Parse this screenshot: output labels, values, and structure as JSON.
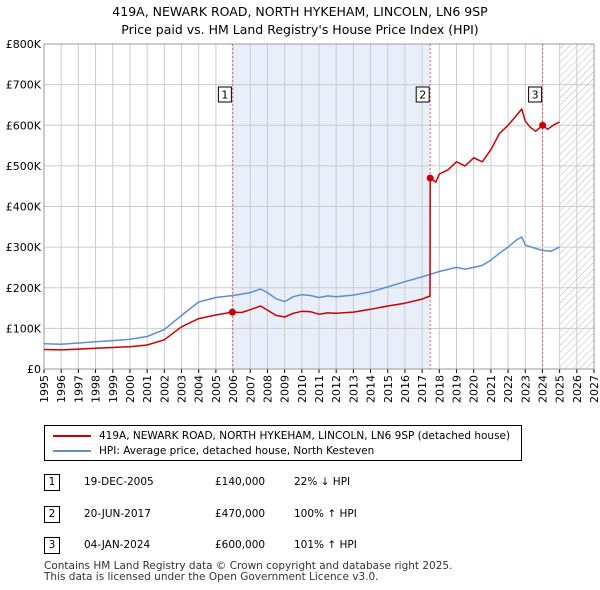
{
  "title_line1": "419A, NEWARK ROAD, NORTH HYKEHAM, LINCOLN, LN6 9SP",
  "title_line2": "Price paid vs. HM Land Registry's House Price Index (HPI)",
  "colors": {
    "property": "#cc0000",
    "hpi": "#5b8fd0",
    "shade": "#e8eefa",
    "grid": "#cccccc",
    "marker_line": "#dd6666"
  },
  "chart_data": {
    "type": "line",
    "xlim": [
      1995,
      2027
    ],
    "ylim": [
      0,
      800000
    ],
    "yticks": [
      0,
      100000,
      200000,
      300000,
      400000,
      500000,
      600000,
      700000,
      800000
    ],
    "ytick_labels": [
      "£0",
      "£100K",
      "£200K",
      "£300K",
      "£400K",
      "£500K",
      "£600K",
      "£700K",
      "£800K"
    ],
    "xticks": [
      1995,
      1996,
      1997,
      1998,
      1999,
      2000,
      2001,
      2002,
      2003,
      2004,
      2005,
      2006,
      2007,
      2008,
      2009,
      2010,
      2011,
      2012,
      2013,
      2014,
      2015,
      2016,
      2017,
      2018,
      2019,
      2020,
      2021,
      2022,
      2023,
      2024,
      2025,
      2026,
      2027
    ],
    "xtick_labels": [
      "1995",
      "1996",
      "1997",
      "1998",
      "1999",
      "2000",
      "2001",
      "2002",
      "2003",
      "2004",
      "2005",
      "2006",
      "2007",
      "2008",
      "2009",
      "2010",
      "2011",
      "2012",
      "2013",
      "2014",
      "2015",
      "2016",
      "2017",
      "2018",
      "2019",
      "2020",
      "2021",
      "2022",
      "2023",
      "2024",
      "2025",
      "2026",
      "2027"
    ],
    "shaded_period": [
      2005.96,
      2017.47
    ],
    "forecast_start": 2025.0,
    "series": [
      {
        "name": "419A, NEWARK ROAD, NORTH HYKEHAM, LINCOLN, LN6 9SP (detached house)",
        "x": [
          1995,
          1996,
          1997,
          1998,
          1999,
          2000,
          2001,
          2002,
          2003,
          2004,
          2005,
          2005.96,
          2006.5,
          2007,
          2007.6,
          2008,
          2008.5,
          2009,
          2009.5,
          2010,
          2010.5,
          2011,
          2011.5,
          2012,
          2013,
          2014,
          2015,
          2016,
          2017,
          2017.46,
          2017.47,
          2017.8,
          2018,
          2018.5,
          2019,
          2019.5,
          2020,
          2020.5,
          2021,
          2021.5,
          2022,
          2022.5,
          2022.8,
          2023,
          2023.3,
          2023.6,
          2024.01,
          2024.3,
          2024.7,
          2025
        ],
        "values": [
          48000,
          47000,
          49000,
          51000,
          53000,
          55000,
          59000,
          72000,
          104000,
          124000,
          133000,
          140000,
          139000,
          146000,
          155000,
          145000,
          132000,
          128000,
          137000,
          142000,
          141000,
          135000,
          138000,
          137000,
          140000,
          147000,
          155000,
          162000,
          172000,
          180000,
          470000,
          460000,
          480000,
          490000,
          510000,
          500000,
          520000,
          510000,
          540000,
          580000,
          600000,
          625000,
          640000,
          610000,
          595000,
          585000,
          600000,
          590000,
          602000,
          608000
        ]
      },
      {
        "name": "HPI: Average price, detached house, North Kesteven",
        "x": [
          1995,
          1996,
          1997,
          1998,
          1999,
          2000,
          2001,
          2002,
          2003,
          2004,
          2005,
          2006,
          2007,
          2007.6,
          2008,
          2008.5,
          2009,
          2009.5,
          2010,
          2010.5,
          2011,
          2011.5,
          2012,
          2013,
          2014,
          2015,
          2016,
          2017,
          2018,
          2019,
          2019.5,
          2020,
          2020.5,
          2021,
          2021.5,
          2022,
          2022.5,
          2022.8,
          2023,
          2023.5,
          2024,
          2024.5,
          2025
        ],
        "values": [
          62000,
          61000,
          64000,
          67000,
          70000,
          73000,
          80000,
          97000,
          132000,
          165000,
          176000,
          181000,
          188000,
          197000,
          188000,
          173000,
          166000,
          178000,
          183000,
          181000,
          176000,
          180000,
          178000,
          182000,
          190000,
          202000,
          215000,
          227000,
          240000,
          250000,
          246000,
          250000,
          255000,
          268000,
          285000,
          300000,
          318000,
          325000,
          305000,
          298000,
          292000,
          290000,
          300000
        ]
      }
    ],
    "sale_markers": [
      {
        "label": "1",
        "x": 2005.96,
        "value": 140000
      },
      {
        "label": "2",
        "x": 2017.47,
        "value": 470000
      },
      {
        "label": "3",
        "x": 2024.01,
        "value": 600000
      }
    ]
  },
  "legend": {
    "property": "419A, NEWARK ROAD, NORTH HYKEHAM, LINCOLN, LN6 9SP (detached house)",
    "hpi": "HPI: Average price, detached house, North Kesteven"
  },
  "sales": [
    {
      "num": "1",
      "date": "19-DEC-2005",
      "price": "£140,000",
      "hpi": "22% ↓ HPI"
    },
    {
      "num": "2",
      "date": "20-JUN-2017",
      "price": "£470,000",
      "hpi": "100% ↑ HPI"
    },
    {
      "num": "3",
      "date": "04-JAN-2024",
      "price": "£600,000",
      "hpi": "101% ↑ HPI"
    }
  ],
  "footer": {
    "line1": "Contains HM Land Registry data © Crown copyright and database right 2025.",
    "line2": "This data is licensed under the Open Government Licence v3.0."
  }
}
